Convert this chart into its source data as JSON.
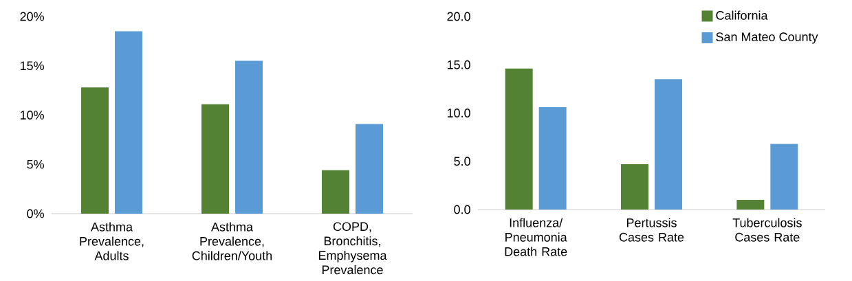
{
  "chart_data": [
    {
      "type": "bar",
      "categories": [
        "Asthma Prevalence, Adults",
        "Asthma Prevalence, Children/Youth",
        "COPD, Bronchitis, Emphysema Prevalence"
      ],
      "series": [
        {
          "color": "#548235",
          "values": [
            12.8,
            11.1,
            4.4
          ]
        },
        {
          "color": "#5b9bd5",
          "values": [
            18.5,
            15.5,
            9.1
          ]
        }
      ],
      "ylim": [
        0,
        20
      ],
      "yticks": [
        {
          "value": 0,
          "label": "0%"
        },
        {
          "value": 5,
          "label": "5%"
        },
        {
          "value": 10,
          "label": "10%"
        },
        {
          "value": 15,
          "label": "15%"
        },
        {
          "value": 20,
          "label": "20%"
        }
      ]
    },
    {
      "type": "bar",
      "categories": [
        "Influenza/ Pneumonia Death Rate",
        "Pertussis Cases Rate",
        "Tuberculosis Cases Rate"
      ],
      "series": [
        {
          "name": "California",
          "color": "#548235",
          "values": [
            14.6,
            4.7,
            1.0
          ]
        },
        {
          "name": "San Mateo County",
          "color": "#5b9bd5",
          "values": [
            10.6,
            13.5,
            6.8
          ]
        }
      ],
      "ylim": [
        0,
        20
      ],
      "yticks": [
        {
          "value": 0,
          "label": "0.0"
        },
        {
          "value": 5,
          "label": "5.0"
        },
        {
          "value": 10,
          "label": "10.0"
        },
        {
          "value": 15,
          "label": "15.0"
        },
        {
          "value": 20,
          "label": "20.0"
        }
      ],
      "legend": "top right"
    }
  ]
}
